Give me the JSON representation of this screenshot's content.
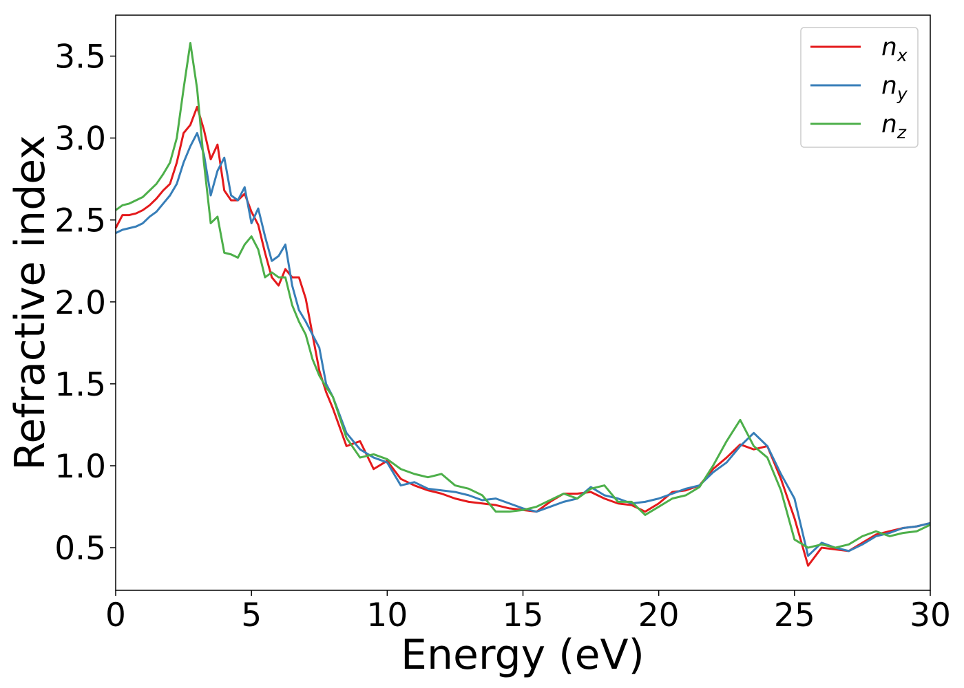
{
  "chart_data": {
    "type": "line",
    "x_label": "Energy (eV)",
    "y_label": "Refractive index",
    "x": [
      0,
      0.25,
      0.5,
      0.75,
      1,
      1.25,
      1.5,
      1.75,
      2,
      2.25,
      2.5,
      2.75,
      3,
      3.25,
      3.5,
      3.75,
      4,
      4.25,
      4.5,
      4.75,
      5,
      5.25,
      5.5,
      5.75,
      6,
      6.25,
      6.5,
      6.75,
      7,
      7.25,
      7.5,
      7.75,
      8,
      8.5,
      9,
      9.5,
      10,
      10.5,
      11,
      11.5,
      12,
      12.5,
      13,
      13.5,
      14,
      14.5,
      15,
      15.5,
      16,
      16.5,
      17,
      17.5,
      18,
      18.5,
      19,
      19.5,
      20,
      20.5,
      21,
      21.5,
      22,
      22.5,
      23,
      23.5,
      24,
      24.5,
      25,
      25.5,
      26,
      26.5,
      27,
      27.5,
      28,
      28.5,
      29,
      29.5,
      30
    ],
    "series": [
      {
        "name": "nx",
        "color": "#e41a1c",
        "values": [
          2.45,
          2.53,
          2.53,
          2.54,
          2.56,
          2.59,
          2.63,
          2.68,
          2.72,
          2.85,
          3.03,
          3.08,
          3.19,
          3.05,
          2.87,
          2.96,
          2.68,
          2.62,
          2.62,
          2.66,
          2.55,
          2.47,
          2.3,
          2.15,
          2.1,
          2.2,
          2.15,
          2.15,
          2.02,
          1.8,
          1.58,
          1.45,
          1.35,
          1.12,
          1.15,
          0.98,
          1.03,
          0.92,
          0.88,
          0.85,
          0.83,
          0.8,
          0.78,
          0.77,
          0.76,
          0.74,
          0.73,
          0.72,
          0.78,
          0.83,
          0.83,
          0.84,
          0.8,
          0.77,
          0.76,
          0.72,
          0.77,
          0.84,
          0.85,
          0.88,
          0.98,
          1.05,
          1.13,
          1.1,
          1.12,
          0.92,
          0.68,
          0.39,
          0.5,
          0.49,
          0.48,
          0.53,
          0.58,
          0.6,
          0.62,
          0.63,
          0.65
        ]
      },
      {
        "name": "ny",
        "color": "#377eb8",
        "values": [
          2.42,
          2.44,
          2.45,
          2.46,
          2.48,
          2.52,
          2.55,
          2.6,
          2.65,
          2.72,
          2.85,
          2.95,
          3.03,
          2.9,
          2.65,
          2.8,
          2.88,
          2.65,
          2.62,
          2.7,
          2.48,
          2.57,
          2.4,
          2.25,
          2.28,
          2.35,
          2.1,
          1.95,
          1.88,
          1.8,
          1.72,
          1.5,
          1.42,
          1.2,
          1.1,
          1.05,
          1.02,
          0.88,
          0.9,
          0.86,
          0.85,
          0.84,
          0.82,
          0.79,
          0.8,
          0.77,
          0.74,
          0.72,
          0.75,
          0.78,
          0.8,
          0.87,
          0.82,
          0.8,
          0.77,
          0.78,
          0.8,
          0.83,
          0.86,
          0.88,
          0.96,
          1.02,
          1.12,
          1.2,
          1.12,
          0.95,
          0.8,
          0.45,
          0.53,
          0.5,
          0.48,
          0.52,
          0.57,
          0.59,
          0.62,
          0.63,
          0.65
        ]
      },
      {
        "name": "nz",
        "color": "#4daf4a",
        "values": [
          2.56,
          2.59,
          2.6,
          2.62,
          2.64,
          2.68,
          2.72,
          2.78,
          2.85,
          3.0,
          3.3,
          3.58,
          3.3,
          2.85,
          2.48,
          2.52,
          2.3,
          2.29,
          2.27,
          2.35,
          2.4,
          2.32,
          2.15,
          2.18,
          2.15,
          2.15,
          1.98,
          1.88,
          1.8,
          1.65,
          1.55,
          1.48,
          1.42,
          1.17,
          1.05,
          1.07,
          1.04,
          0.98,
          0.95,
          0.93,
          0.95,
          0.88,
          0.86,
          0.82,
          0.72,
          0.72,
          0.73,
          0.75,
          0.79,
          0.83,
          0.8,
          0.86,
          0.88,
          0.78,
          0.78,
          0.7,
          0.75,
          0.8,
          0.82,
          0.87,
          1.0,
          1.15,
          1.28,
          1.12,
          1.05,
          0.85,
          0.55,
          0.5,
          0.52,
          0.5,
          0.52,
          0.57,
          0.6,
          0.57,
          0.59,
          0.6,
          0.64
        ]
      }
    ],
    "xlim": [
      0,
      30
    ],
    "xticks": [
      0,
      5,
      10,
      15,
      20,
      25,
      30
    ],
    "ylim": [
      0.24,
      3.75
    ],
    "yticks": [
      0.5,
      {
        "value": 1,
        "label": "1.0"
      },
      1.5,
      {
        "value": 2,
        "label": "2.0"
      },
      2.5,
      {
        "value": 3,
        "label": "3.0"
      },
      3.5
    ],
    "legend": "upper right",
    "grid": false
  }
}
